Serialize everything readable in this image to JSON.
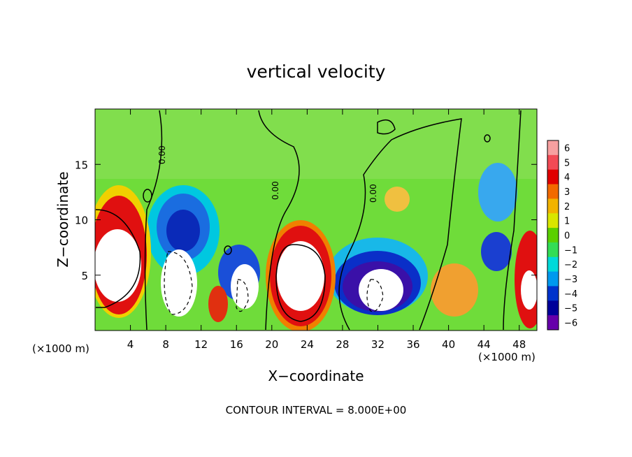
{
  "chart_data": {
    "type": "heatmap",
    "title": "vertical velocity",
    "xlabel": "X−coordinate",
    "ylabel": "Z−coordinate",
    "x_unit_label": "(×1000 m)",
    "x_ticks": [
      "4",
      "8",
      "12",
      "16",
      "20",
      "24",
      "28",
      "32",
      "36",
      "40",
      "44",
      "48"
    ],
    "x_tick_values": [
      4,
      8,
      12,
      16,
      20,
      24,
      28,
      32,
      36,
      40,
      44,
      48
    ],
    "y_ticks": [
      "5",
      "10",
      "15"
    ],
    "y_tick_values": [
      5,
      10,
      15
    ],
    "xlim": [
      0,
      50
    ],
    "ylim": [
      0,
      20
    ],
    "colorbar": {
      "levels": [
        6,
        5,
        4,
        3,
        2,
        1,
        0,
        -1,
        -2,
        -3,
        -4,
        -5,
        -6
      ],
      "labels": [
        "6",
        "5",
        "4",
        "3",
        "2",
        "1",
        "0",
        "−1",
        "−2",
        "−3",
        "−4",
        "−5",
        "−6"
      ],
      "colors": [
        "#f7a0a0",
        "#f24a55",
        "#e00000",
        "#f26a00",
        "#f2b300",
        "#d9e600",
        "#5ad000",
        "#33dd55",
        "#00d9d9",
        "#0099ee",
        "#0033cc",
        "#000099",
        "#6600aa"
      ]
    },
    "contour_labels": [
      "0.00",
      "0.00",
      "0.00"
    ],
    "annotation": "CONTOUR INTERVAL = 8.000E+00"
  }
}
